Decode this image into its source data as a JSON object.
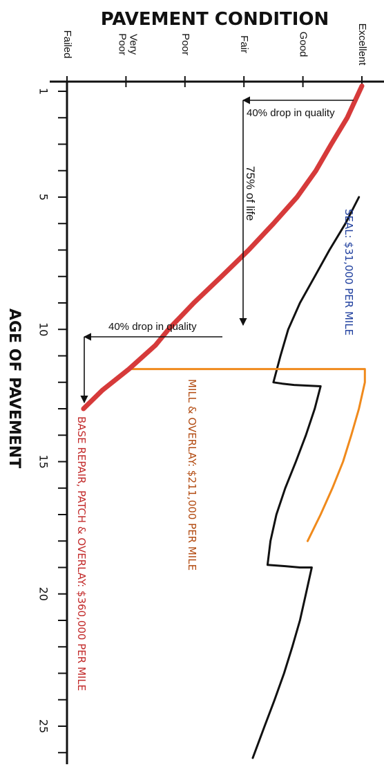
{
  "chart_data": {
    "type": "line",
    "title": "PAVEMENT CONDITION",
    "xlabel": "AGE OF PAVEMENT",
    "ylabel": "PAVEMENT CONDITION",
    "x_ticks": [
      1,
      5,
      10,
      15,
      20,
      25
    ],
    "xlim": [
      0,
      26
    ],
    "condition_scale": [
      "Failed",
      "Very Poor",
      "Poor",
      "Fair",
      "Good",
      "Excellent"
    ],
    "ylim": [
      0,
      5
    ],
    "colors": {
      "deterioration": "#d63a3a",
      "seal": "#111111",
      "mill_overlay": "#f08a1c",
      "seal_label": "#1f3f9e",
      "mill_label": "#b24a10",
      "base_label": "#c22a2a",
      "annotation": "#111111"
    },
    "series": [
      {
        "key": "deterioration",
        "points": [
          [
            0.8,
            5.0
          ],
          [
            2,
            4.75
          ],
          [
            3,
            4.48
          ],
          [
            4,
            4.22
          ],
          [
            5,
            3.9
          ],
          [
            6,
            3.5
          ],
          [
            7,
            3.08
          ],
          [
            8,
            2.62
          ],
          [
            9,
            2.15
          ],
          [
            10,
            1.72
          ],
          [
            10.6,
            1.5
          ],
          [
            11.5,
            1.05
          ],
          [
            12.3,
            0.6
          ],
          [
            13,
            0.28
          ]
        ]
      },
      {
        "key": "seal",
        "points": [
          [
            5,
            4.95
          ],
          [
            6,
            4.72
          ],
          [
            7,
            4.45
          ],
          [
            8,
            4.2
          ],
          [
            9,
            3.95
          ],
          [
            10,
            3.75
          ],
          [
            11,
            3.62
          ],
          [
            12,
            3.5
          ],
          [
            12.05,
            3.65
          ],
          [
            12.1,
            3.85
          ],
          [
            12.15,
            4.3
          ],
          [
            13,
            4.2
          ],
          [
            14,
            4.05
          ],
          [
            15,
            3.88
          ],
          [
            16,
            3.7
          ],
          [
            17,
            3.55
          ],
          [
            18,
            3.45
          ],
          [
            18.9,
            3.4
          ],
          [
            18.95,
            3.7
          ],
          [
            19,
            3.95
          ],
          [
            19,
            4.15
          ],
          [
            20,
            4.05
          ],
          [
            21,
            3.95
          ],
          [
            22,
            3.82
          ],
          [
            23,
            3.68
          ],
          [
            24,
            3.52
          ],
          [
            25,
            3.35
          ],
          [
            26.2,
            3.15
          ]
        ]
      },
      {
        "key": "mill_overlay",
        "points": [
          [
            11.5,
            1.08
          ],
          [
            11.5,
            5.05
          ],
          [
            12,
            5.05
          ],
          [
            13,
            4.95
          ],
          [
            14,
            4.82
          ],
          [
            15,
            4.68
          ],
          [
            16,
            4.5
          ],
          [
            17,
            4.3
          ],
          [
            18,
            4.08
          ]
        ]
      }
    ],
    "annotations": {
      "drop_top": "40% drop in quality",
      "life": "75% of life",
      "drop_bottom": "40% drop in quality",
      "seal": "SEAL:  $31,000 PER MILE",
      "mill_overlay": "MILL & OVERLAY: $211,000 PER MILE",
      "base_repair": "BASE REPAIR, PATCH & OVERLAY: $360,000 PER MILE"
    }
  }
}
